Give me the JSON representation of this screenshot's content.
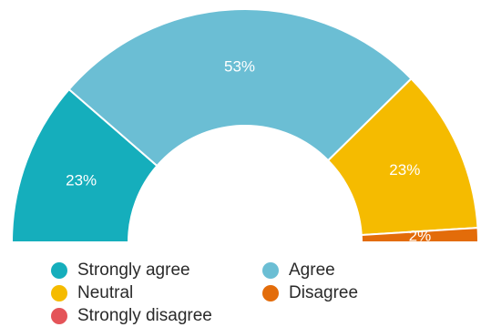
{
  "chart_data": {
    "type": "pie",
    "subtype": "semicircle-donut",
    "title": "",
    "series": [
      {
        "name": "Strongly agree",
        "value": 23,
        "label": "23%",
        "color": "#15aebc"
      },
      {
        "name": "Agree",
        "value": 53,
        "label": "53%",
        "color": "#6bbed4"
      },
      {
        "name": "Neutral",
        "value": 23,
        "label": "23%",
        "color": "#f5bb00"
      },
      {
        "name": "Disagree",
        "value": 2,
        "label": "2%",
        "color": "#e36c0a"
      },
      {
        "name": "Strongly disagree",
        "value": 0,
        "label": "0%",
        "color": "#e45459"
      }
    ],
    "legend_position": "bottom"
  }
}
